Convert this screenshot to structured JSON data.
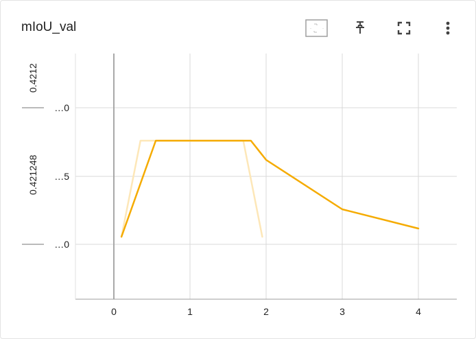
{
  "card": {
    "title": "mIoU_val",
    "toolbar": {
      "icons": [
        "fit-to-domain-icon",
        "pin-icon",
        "fullscreen-icon",
        "more-vert-icon"
      ]
    }
  },
  "colors": {
    "smoothed_line": "#f5ab00",
    "raw_line": "#fde7b8",
    "grid": "#d9d9d9",
    "zero_line": "#a8a8a8"
  },
  "chart_data": {
    "type": "line",
    "title": "mIoU_val",
    "xlabel": "",
    "ylabel": "",
    "x_ticks": [
      "0",
      "1",
      "2",
      "3",
      "4"
    ],
    "xlim": [
      -0.5,
      4.5
    ],
    "y_ticks": [
      "…0",
      "…5",
      "…0"
    ],
    "y_axis_label_fragments": [
      "0.4212",
      "0.421248"
    ],
    "grid": true,
    "series": [
      {
        "role": "smoothed",
        "x": [
          0.1,
          0.55,
          1.8,
          2.0,
          3.0,
          4.0
        ],
        "y": [
          0.4212458,
          0.4212493,
          0.4212493,
          0.4212486,
          0.4212468,
          0.4212461
        ]
      },
      {
        "role": "raw",
        "x": [
          0.1,
          0.35,
          1.7,
          1.95
        ],
        "y": [
          0.4212458,
          0.4212493,
          0.4212493,
          0.4212458
        ]
      }
    ]
  }
}
